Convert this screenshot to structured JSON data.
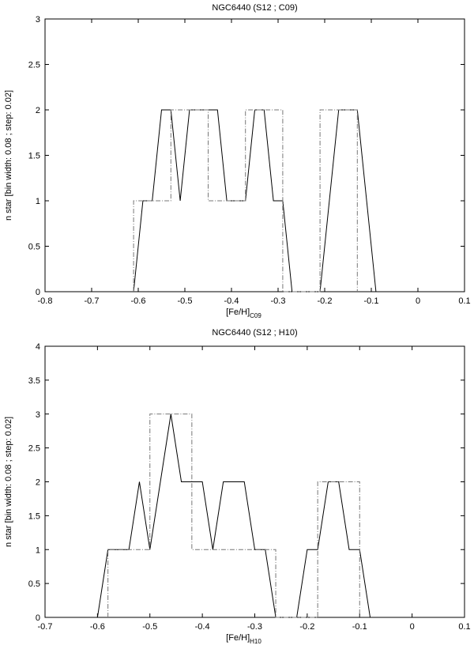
{
  "chart_data": [
    {
      "type": "line",
      "title": "NGC6440 (S12 ; C09)",
      "xlabel_main": "[Fe/H]",
      "xlabel_sub": "C09",
      "ylabel": "n star [bin width: 0.08 ; step: 0.02]",
      "xlim": [
        -0.8,
        0.1
      ],
      "ylim": [
        0,
        3
      ],
      "xticks": [
        -0.8,
        -0.7,
        -0.6,
        -0.5,
        -0.4,
        -0.3,
        -0.2,
        -0.1,
        0,
        0.1
      ],
      "xtick_labels": [
        "-0.8",
        "-0.7",
        "-0.6",
        "-0.5",
        "-0.4",
        "-0.3",
        "-0.2",
        "-0.1",
        "0",
        "0.1"
      ],
      "yticks": [
        0,
        0.5,
        1,
        1.5,
        2,
        2.5,
        3
      ],
      "ytick_labels": [
        "0",
        "0.5",
        "1",
        "1.5",
        "2",
        "2.5",
        "3"
      ],
      "series": [
        {
          "style": "solid",
          "color": "#000000",
          "x": [
            -0.61,
            -0.59,
            -0.57,
            -0.55,
            -0.53,
            -0.51,
            -0.49,
            -0.47,
            -0.45,
            -0.43,
            -0.41,
            -0.39,
            -0.37,
            -0.35,
            -0.33,
            -0.31,
            -0.29,
            -0.27,
            -0.21,
            -0.19,
            -0.17,
            -0.15,
            -0.13,
            -0.11,
            -0.09
          ],
          "y": [
            0,
            1,
            1,
            2,
            2,
            1,
            2,
            2,
            2,
            2,
            1,
            1,
            1,
            2,
            2,
            1,
            1,
            0,
            0,
            1,
            2,
            2,
            2,
            1,
            0
          ]
        },
        {
          "style": "dashdot",
          "color": "#777777",
          "x": [
            -0.61,
            -0.61,
            -0.53,
            -0.53,
            -0.45,
            -0.45,
            -0.37,
            -0.37,
            -0.29,
            -0.29,
            -0.21,
            -0.21,
            -0.13,
            -0.13
          ],
          "y": [
            0,
            1,
            1,
            2,
            2,
            1,
            1,
            2,
            2,
            0,
            0,
            2,
            2,
            0
          ]
        }
      ]
    },
    {
      "type": "line",
      "title": "NGC6440 (S12 ; H10)",
      "xlabel_main": "[Fe/H]",
      "xlabel_sub": "H10",
      "ylabel": "n star [bin width: 0.08 ; step: 0.02]",
      "xlim": [
        -0.7,
        0.1
      ],
      "ylim": [
        0,
        4
      ],
      "xticks": [
        -0.7,
        -0.6,
        -0.5,
        -0.4,
        -0.3,
        -0.2,
        -0.1,
        0,
        0.1
      ],
      "xtick_labels": [
        "-0.7",
        "-0.6",
        "-0.5",
        "-0.4",
        "-0.3",
        "-0.2",
        "-0.1",
        "0",
        "0.1"
      ],
      "yticks": [
        0,
        0.5,
        1,
        1.5,
        2,
        2.5,
        3,
        3.5,
        4
      ],
      "ytick_labels": [
        "0",
        "0.5",
        "1",
        "1.5",
        "2",
        "2.5",
        "3",
        "3.5",
        "4"
      ],
      "series": [
        {
          "style": "solid",
          "color": "#000000",
          "x": [
            -0.6,
            -0.58,
            -0.56,
            -0.54,
            -0.52,
            -0.5,
            -0.48,
            -0.46,
            -0.44,
            -0.42,
            -0.4,
            -0.38,
            -0.36,
            -0.34,
            -0.32,
            -0.3,
            -0.28,
            -0.26,
            -0.22,
            -0.2,
            -0.18,
            -0.16,
            -0.14,
            -0.12,
            -0.1,
            -0.08
          ],
          "y": [
            0,
            1,
            1,
            1,
            2,
            1,
            2,
            3,
            2,
            2,
            2,
            1,
            2,
            2,
            2,
            1,
            1,
            0,
            0,
            1,
            1,
            2,
            2,
            1,
            1,
            0
          ]
        },
        {
          "style": "dashdot",
          "color": "#777777",
          "x": [
            -0.58,
            -0.58,
            -0.5,
            -0.5,
            -0.42,
            -0.42,
            -0.26,
            -0.26,
            -0.18,
            -0.18,
            -0.1,
            -0.1
          ],
          "y": [
            0,
            1,
            1,
            3,
            3,
            1,
            1,
            0,
            0,
            2,
            2,
            0
          ]
        }
      ]
    }
  ]
}
